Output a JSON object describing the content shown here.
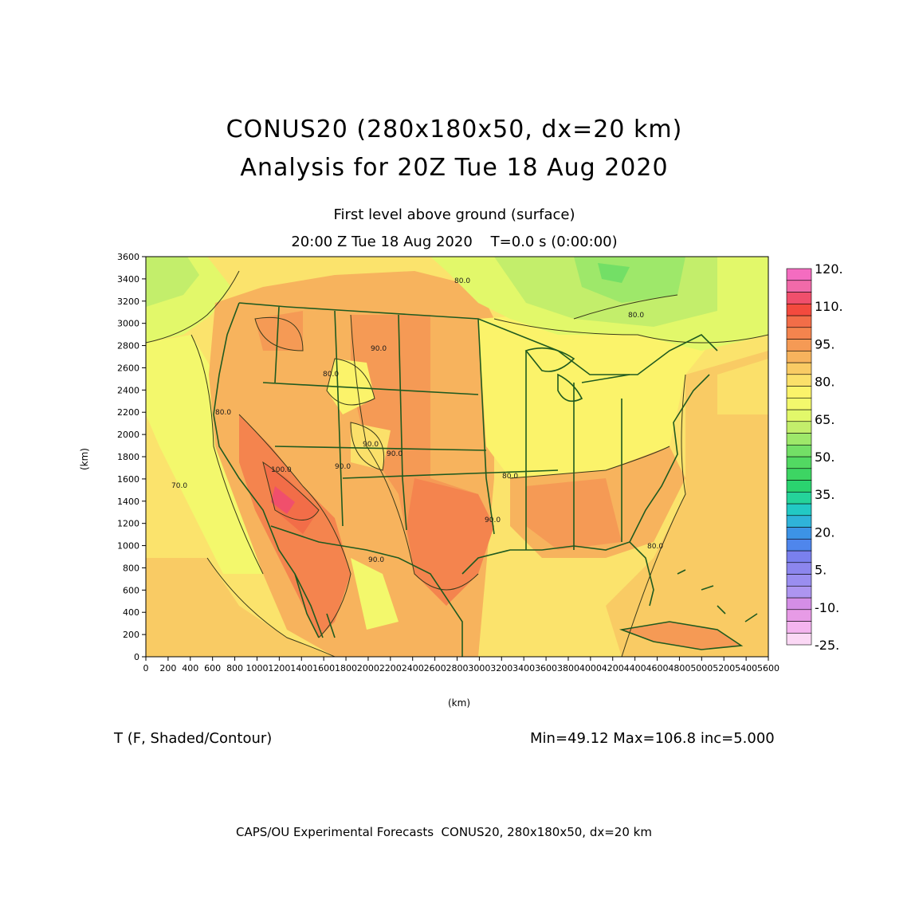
{
  "title": {
    "line1": "CONUS20 (280x180x50, dx=20 km)",
    "line2": "Analysis for 20Z Tue 18 Aug 2020"
  },
  "subtitle": {
    "line1": "First level above ground (surface)",
    "line2": "20:00 Z Tue 18 Aug 2020    T=0.0 s (0:00:00)"
  },
  "axes": {
    "xlabel": "(km)",
    "ylabel": "(km)",
    "x_ticks": [
      0,
      200,
      400,
      600,
      800,
      1000,
      1200,
      1400,
      1600,
      1800,
      2000,
      2200,
      2400,
      2600,
      2800,
      3000,
      3200,
      3400,
      3600,
      3800,
      4000,
      4200,
      4400,
      4600,
      4800,
      5000,
      5200,
      5400,
      5600
    ],
    "y_ticks": [
      0,
      200,
      400,
      600,
      800,
      1000,
      1200,
      1400,
      1600,
      1800,
      2000,
      2200,
      2400,
      2600,
      2800,
      3000,
      3200,
      3400,
      3600
    ],
    "xlim": [
      0,
      5600
    ],
    "ylim": [
      0,
      3600
    ]
  },
  "field_label": "T (F, Shaded/Contour)",
  "stats": "Min=49.12 Max=106.8 inc=5.000",
  "footer": "CAPS/OU Experimental Forecasts  CONUS20, 280x180x50, dx=20 km",
  "colorbar": {
    "labels": [
      "120.",
      "110.",
      "95.",
      "80.",
      "65.",
      "50.",
      "35.",
      "20.",
      "5.",
      "-10.",
      "-25."
    ],
    "colors": [
      "#fbd8f5",
      "#f4b4ef",
      "#e79be6",
      "#d48ee6",
      "#ad95f0",
      "#9a8ef0",
      "#8c86ee",
      "#7a80ee",
      "#4f86ec",
      "#3c93e6",
      "#2fb3d9",
      "#22c9c4",
      "#25d39a",
      "#2ad36f",
      "#3dd563",
      "#52d962",
      "#73df66",
      "#9ee86a",
      "#c3ee6b",
      "#e2f86a",
      "#f3f86c",
      "#fbf36a",
      "#fbe06a",
      "#f9cb64",
      "#f7b35d",
      "#f59a55",
      "#f4844e",
      "#f26d48",
      "#f34a3e",
      "#f04f6c",
      "#f16aa9",
      "#f46cc0"
    ]
  },
  "contour_labels": [
    "100.0",
    "90.0",
    "90.0",
    "80.0",
    "90.0",
    "90.0",
    "90.0",
    "90.0",
    "80.0",
    "80.0",
    "80.0",
    "70.0",
    "80.0",
    "80.0"
  ],
  "colors": {
    "boundary": "#1f5a1f",
    "contour": "#3a3a1a"
  }
}
